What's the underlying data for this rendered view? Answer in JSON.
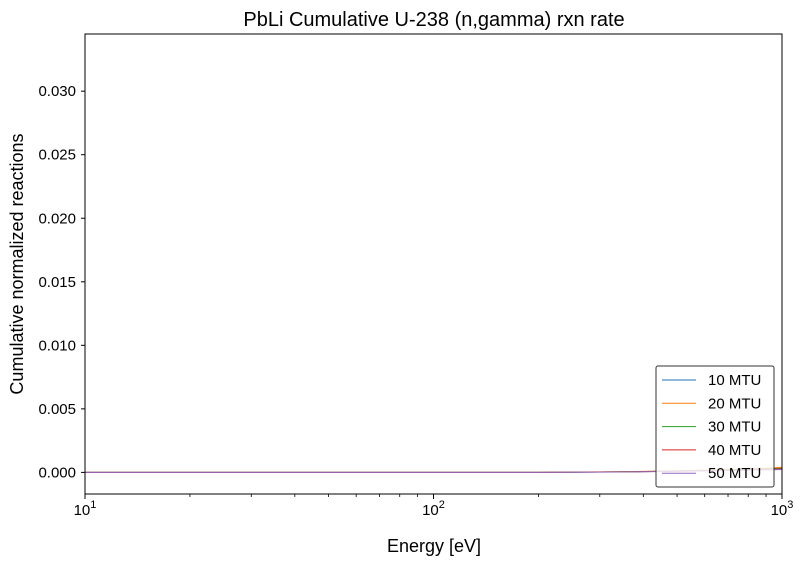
{
  "chart_data": {
    "type": "line",
    "title": "PbLi Cumulative U-238 (n,gamma) rxn rate",
    "xlabel": "Energy [eV]",
    "ylabel": "Cumulative normalized reactions",
    "xscale": "log",
    "xlim": [
      10,
      1000
    ],
    "ylim": [
      -0.0017,
      0.0345
    ],
    "x_ticks": [
      {
        "value": 10,
        "base": "10",
        "exp": "1"
      },
      {
        "value": 100,
        "base": "10",
        "exp": "2"
      },
      {
        "value": 1000,
        "base": "10",
        "exp": "3"
      }
    ],
    "y_ticks": [
      {
        "value": 0.0,
        "label": "0.000"
      },
      {
        "value": 0.005,
        "label": "0.005"
      },
      {
        "value": 0.01,
        "label": "0.010"
      },
      {
        "value": 0.015,
        "label": "0.015"
      },
      {
        "value": 0.02,
        "label": "0.020"
      },
      {
        "value": 0.025,
        "label": "0.025"
      },
      {
        "value": 0.03,
        "label": "0.030"
      }
    ],
    "grid": false,
    "legend_position": "bottom-right",
    "series": [
      {
        "name": "10 MTU",
        "color": "#1f77b4",
        "x": [
          10,
          20,
          50,
          100,
          200,
          300,
          400,
          500,
          600,
          700,
          800,
          900,
          1000
        ],
        "y": [
          0.0,
          0.0,
          0.0,
          0.0,
          0.0,
          3e-05,
          6e-05,
          0.0001,
          0.00014,
          0.00018,
          0.00022,
          0.00026,
          0.0003
        ]
      },
      {
        "name": "20 MTU",
        "color": "#ff7f0e",
        "x": [
          10,
          20,
          50,
          100,
          200,
          300,
          400,
          500,
          600,
          700,
          800,
          900,
          1000
        ],
        "y": [
          0.0,
          0.0,
          0.0,
          0.0,
          0.0,
          4e-05,
          8e-05,
          0.00013,
          0.00018,
          0.00023,
          0.00028,
          0.00033,
          0.0004
        ]
      },
      {
        "name": "30 MTU",
        "color": "#2ca02c",
        "x": [
          10,
          20,
          50,
          100,
          200,
          300,
          400,
          500,
          600,
          700,
          800,
          900,
          1000
        ],
        "y": [
          0.0,
          0.0,
          0.0,
          0.0,
          0.0,
          3e-05,
          7e-05,
          0.00011,
          0.00015,
          0.0002,
          0.00024,
          0.00028,
          0.00033
        ]
      },
      {
        "name": "40 MTU",
        "color": "#d62728",
        "x": [
          10,
          20,
          50,
          100,
          200,
          300,
          400,
          500,
          600,
          700,
          800,
          900,
          1000
        ],
        "y": [
          0.0,
          0.0,
          0.0,
          0.0,
          0.0,
          3e-05,
          6e-05,
          0.0001,
          0.00013,
          0.00017,
          0.0002,
          0.00024,
          0.00028
        ]
      },
      {
        "name": "50 MTU",
        "color": "#9467bd",
        "x": [
          10,
          20,
          50,
          100,
          200,
          300,
          400,
          500,
          600,
          700,
          800,
          900,
          1000
        ],
        "y": [
          0.0,
          0.0,
          0.0,
          0.0,
          0.0,
          2e-05,
          5e-05,
          8e-05,
          0.00011,
          0.00014,
          0.00017,
          0.0002,
          0.00023
        ]
      }
    ]
  }
}
